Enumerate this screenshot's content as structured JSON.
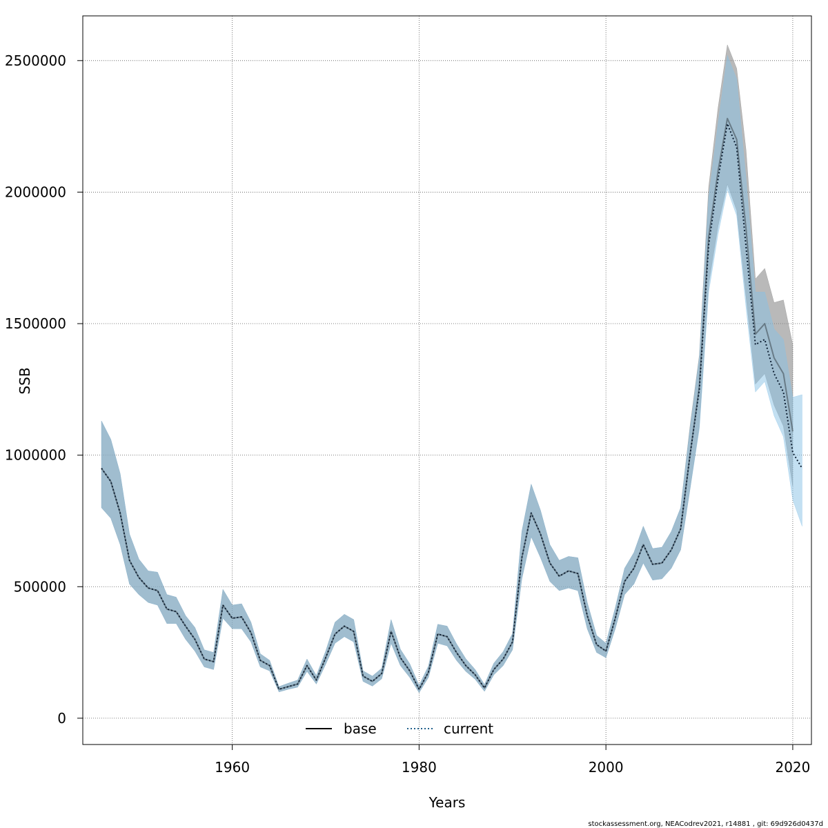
{
  "chart_data": {
    "type": "area",
    "xlabel": "Years",
    "ylabel": "SSB",
    "xlim": [
      1944,
      2022
    ],
    "ylim": [
      -100000,
      2670000
    ],
    "grid": true,
    "x_ticks": [
      1960,
      1980,
      2000,
      2020
    ],
    "y_ticks": [
      0,
      500000,
      1000000,
      1500000,
      2000000,
      2500000
    ],
    "x_tick_labels": [
      "1960",
      "1980",
      "2000",
      "2020"
    ],
    "y_tick_labels": [
      "0",
      "500000",
      "1000000",
      "1500000",
      "2000000",
      "2500000"
    ],
    "legend": {
      "position": "bottom-center",
      "entries": [
        {
          "name": "base",
          "style": "solid",
          "color": "#000000"
        },
        {
          "name": "current",
          "style": "dotted",
          "color": "#1f5f8b"
        }
      ]
    },
    "series": [
      {
        "name": "base",
        "line_color": "#000000",
        "band_color": "#808080",
        "x": [
          1946,
          1947,
          1948,
          1949,
          1950,
          1951,
          1952,
          1953,
          1954,
          1955,
          1956,
          1957,
          1958,
          1959,
          1960,
          1961,
          1962,
          1963,
          1964,
          1965,
          1966,
          1967,
          1968,
          1969,
          1970,
          1971,
          1972,
          1973,
          1974,
          1975,
          1976,
          1977,
          1978,
          1979,
          1980,
          1981,
          1982,
          1983,
          1984,
          1985,
          1986,
          1987,
          1988,
          1989,
          1990,
          1991,
          1992,
          1993,
          1994,
          1995,
          1996,
          1997,
          1998,
          1999,
          2000,
          2001,
          2002,
          2003,
          2004,
          2005,
          2006,
          2007,
          2008,
          2009,
          2010,
          2011,
          2012,
          2013,
          2014,
          2015,
          2016,
          2017,
          2018,
          2019,
          2020
        ],
        "values": [
          950000,
          900000,
          780000,
          600000,
          535000,
          495000,
          485000,
          415000,
          405000,
          350000,
          300000,
          225000,
          215000,
          430000,
          380000,
          385000,
          325000,
          220000,
          200000,
          110000,
          120000,
          130000,
          200000,
          145000,
          230000,
          320000,
          350000,
          330000,
          160000,
          140000,
          170000,
          330000,
          230000,
          180000,
          110000,
          175000,
          320000,
          310000,
          250000,
          200000,
          165000,
          115000,
          185000,
          225000,
          290000,
          610000,
          780000,
          700000,
          590000,
          540000,
          560000,
          550000,
          390000,
          280000,
          255000,
          380000,
          520000,
          570000,
          660000,
          585000,
          590000,
          640000,
          720000,
          1000000,
          1260000,
          1830000,
          2080000,
          2280000,
          2200000,
          1860000,
          1460000,
          1500000,
          1370000,
          1310000,
          1090000
        ],
        "lower": [
          800000,
          760000,
          660000,
          510000,
          470000,
          440000,
          430000,
          360000,
          360000,
          300000,
          255000,
          195000,
          185000,
          380000,
          340000,
          340000,
          290000,
          195000,
          180000,
          100000,
          110000,
          118000,
          178000,
          130000,
          205000,
          285000,
          310000,
          290000,
          140000,
          122000,
          150000,
          285000,
          200000,
          155000,
          97000,
          155000,
          285000,
          275000,
          220000,
          178000,
          148000,
          102000,
          165000,
          200000,
          260000,
          530000,
          690000,
          610000,
          520000,
          485000,
          495000,
          485000,
          340000,
          250000,
          230000,
          340000,
          470000,
          510000,
          590000,
          525000,
          530000,
          570000,
          640000,
          870000,
          1110000,
          1650000,
          1870000,
          2030000,
          1930000,
          1600000,
          1270000,
          1310000,
          1190000,
          1110000,
          880000
        ],
        "upper": [
          1130000,
          1060000,
          930000,
          700000,
          605000,
          560000,
          555000,
          470000,
          460000,
          390000,
          345000,
          260000,
          250000,
          490000,
          430000,
          435000,
          365000,
          245000,
          220000,
          120000,
          133000,
          145000,
          225000,
          162000,
          255000,
          365000,
          395000,
          375000,
          180000,
          160000,
          190000,
          375000,
          262000,
          207000,
          125000,
          198000,
          357000,
          350000,
          283000,
          226000,
          185000,
          128000,
          209000,
          253000,
          322000,
          710000,
          890000,
          790000,
          660000,
          600000,
          615000,
          610000,
          440000,
          315000,
          285000,
          420000,
          570000,
          630000,
          730000,
          645000,
          650000,
          710000,
          800000,
          1110000,
          1380000,
          2020000,
          2320000,
          2560000,
          2470000,
          2160000,
          1670000,
          1710000,
          1580000,
          1590000,
          1420000
        ]
      },
      {
        "name": "current",
        "line_color": "#1f5f8b",
        "band_color": "#87c1e6",
        "x": [
          1946,
          1947,
          1948,
          1949,
          1950,
          1951,
          1952,
          1953,
          1954,
          1955,
          1956,
          1957,
          1958,
          1959,
          1960,
          1961,
          1962,
          1963,
          1964,
          1965,
          1966,
          1967,
          1968,
          1969,
          1970,
          1971,
          1972,
          1973,
          1974,
          1975,
          1976,
          1977,
          1978,
          1979,
          1980,
          1981,
          1982,
          1983,
          1984,
          1985,
          1986,
          1987,
          1988,
          1989,
          1990,
          1991,
          1992,
          1993,
          1994,
          1995,
          1996,
          1997,
          1998,
          1999,
          2000,
          2001,
          2002,
          2003,
          2004,
          2005,
          2006,
          2007,
          2008,
          2009,
          2010,
          2011,
          2012,
          2013,
          2014,
          2015,
          2016,
          2017,
          2018,
          2019,
          2020,
          2021
        ],
        "values": [
          950000,
          900000,
          780000,
          600000,
          535000,
          495000,
          485000,
          415000,
          405000,
          350000,
          300000,
          225000,
          215000,
          430000,
          380000,
          385000,
          325000,
          220000,
          200000,
          110000,
          120000,
          130000,
          200000,
          145000,
          230000,
          320000,
          350000,
          330000,
          160000,
          140000,
          170000,
          330000,
          230000,
          180000,
          110000,
          175000,
          320000,
          310000,
          250000,
          200000,
          165000,
          115000,
          185000,
          225000,
          290000,
          610000,
          780000,
          700000,
          590000,
          540000,
          560000,
          550000,
          390000,
          280000,
          255000,
          380000,
          520000,
          570000,
          660000,
          585000,
          590000,
          640000,
          720000,
          1000000,
          1250000,
          1800000,
          2050000,
          2260000,
          2170000,
          1790000,
          1420000,
          1440000,
          1310000,
          1240000,
          1010000,
          950000
        ],
        "lower": [
          800000,
          760000,
          660000,
          510000,
          470000,
          440000,
          430000,
          360000,
          360000,
          300000,
          255000,
          195000,
          185000,
          380000,
          340000,
          340000,
          290000,
          195000,
          180000,
          100000,
          110000,
          118000,
          178000,
          130000,
          205000,
          285000,
          310000,
          290000,
          140000,
          122000,
          150000,
          285000,
          200000,
          155000,
          97000,
          155000,
          285000,
          275000,
          220000,
          178000,
          148000,
          102000,
          165000,
          200000,
          260000,
          530000,
          690000,
          610000,
          520000,
          485000,
          495000,
          485000,
          340000,
          250000,
          230000,
          340000,
          470000,
          510000,
          590000,
          525000,
          530000,
          570000,
          640000,
          870000,
          1100000,
          1620000,
          1840000,
          2010000,
          1910000,
          1560000,
          1240000,
          1280000,
          1150000,
          1070000,
          830000,
          730000
        ],
        "upper": [
          1130000,
          1060000,
          930000,
          700000,
          605000,
          560000,
          555000,
          470000,
          460000,
          390000,
          345000,
          260000,
          250000,
          490000,
          430000,
          435000,
          365000,
          245000,
          220000,
          120000,
          133000,
          145000,
          225000,
          162000,
          255000,
          365000,
          395000,
          375000,
          180000,
          160000,
          190000,
          375000,
          262000,
          207000,
          125000,
          198000,
          357000,
          350000,
          283000,
          226000,
          185000,
          128000,
          209000,
          253000,
          322000,
          710000,
          890000,
          790000,
          660000,
          600000,
          615000,
          610000,
          440000,
          315000,
          285000,
          420000,
          570000,
          630000,
          730000,
          645000,
          650000,
          710000,
          800000,
          1100000,
          1370000,
          1980000,
          2260000,
          2520000,
          2430000,
          2050000,
          1620000,
          1620000,
          1480000,
          1440000,
          1220000,
          1230000
        ]
      }
    ]
  },
  "footer": {
    "text": "stockassessment.org, NEACodrev2021, r14881 , git: 69d926d0437d"
  }
}
